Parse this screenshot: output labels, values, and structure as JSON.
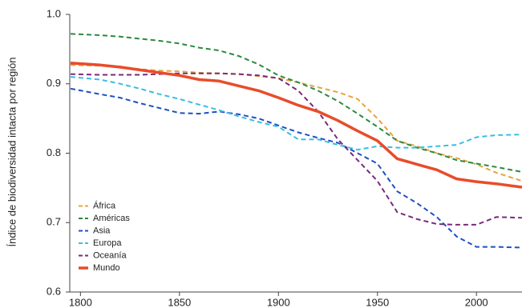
{
  "chart_data": {
    "type": "line",
    "ylabel": "Índice de biodiversidad intacta por región",
    "x": [
      1795,
      1810,
      1820,
      1830,
      1840,
      1850,
      1860,
      1870,
      1880,
      1890,
      1900,
      1910,
      1920,
      1930,
      1940,
      1950,
      1960,
      1970,
      1980,
      1990,
      2000,
      2010,
      2023
    ],
    "xlim": [
      1795,
      2023
    ],
    "xticks": [
      1800,
      1850,
      1900,
      1950,
      2000
    ],
    "ylim": [
      0.6,
      1.0
    ],
    "yticks": [
      0.6,
      0.7,
      0.8,
      0.9,
      {
        "value": 1.0,
        "label": "1.0"
      }
    ],
    "grid": false,
    "legend": "lower-left",
    "series": [
      {
        "name": "África",
        "color": "#e8a33d",
        "style": "dashed",
        "values": [
          0.927,
          0.926,
          0.925,
          0.921,
          0.919,
          0.918,
          0.916,
          0.915,
          0.914,
          0.911,
          0.908,
          0.902,
          0.895,
          0.888,
          0.878,
          0.85,
          0.818,
          0.81,
          0.8,
          0.793,
          0.784,
          0.772,
          0.76
        ]
      },
      {
        "name": "Américas",
        "color": "#2a8a3e",
        "style": "dashed",
        "values": [
          0.972,
          0.97,
          0.968,
          0.965,
          0.962,
          0.958,
          0.952,
          0.948,
          0.94,
          0.928,
          0.912,
          0.902,
          0.89,
          0.875,
          0.857,
          0.838,
          0.818,
          0.808,
          0.8,
          0.79,
          0.785,
          0.78,
          0.773
        ]
      },
      {
        "name": "Asia",
        "color": "#1f4fc4",
        "style": "dashed",
        "values": [
          0.893,
          0.885,
          0.88,
          0.872,
          0.865,
          0.858,
          0.857,
          0.86,
          0.856,
          0.85,
          0.84,
          0.83,
          0.822,
          0.815,
          0.8,
          0.785,
          0.745,
          0.728,
          0.708,
          0.68,
          0.665,
          0.665,
          0.664
        ]
      },
      {
        "name": "Europa",
        "color": "#3bbde0",
        "style": "dashed",
        "values": [
          0.91,
          0.906,
          0.9,
          0.893,
          0.885,
          0.878,
          0.87,
          0.862,
          0.853,
          0.845,
          0.838,
          0.82,
          0.82,
          0.812,
          0.805,
          0.81,
          0.808,
          0.808,
          0.81,
          0.812,
          0.823,
          0.826,
          0.827
        ]
      },
      {
        "name": "Oceanía",
        "color": "#7a2a7a",
        "style": "dashed",
        "values": [
          0.914,
          0.913,
          0.913,
          0.913,
          0.914,
          0.915,
          0.915,
          0.915,
          0.914,
          0.912,
          0.908,
          0.89,
          0.86,
          0.82,
          0.79,
          0.76,
          0.715,
          0.705,
          0.698,
          0.697,
          0.697,
          0.708,
          0.707
        ]
      },
      {
        "name": "Mundo",
        "color": "#e84c2a",
        "style": "solid",
        "values": [
          0.93,
          0.927,
          0.924,
          0.92,
          0.916,
          0.912,
          0.906,
          0.904,
          0.897,
          0.89,
          0.88,
          0.869,
          0.86,
          0.847,
          0.832,
          0.818,
          0.792,
          0.784,
          0.776,
          0.763,
          0.759,
          0.756,
          0.751
        ]
      }
    ]
  }
}
